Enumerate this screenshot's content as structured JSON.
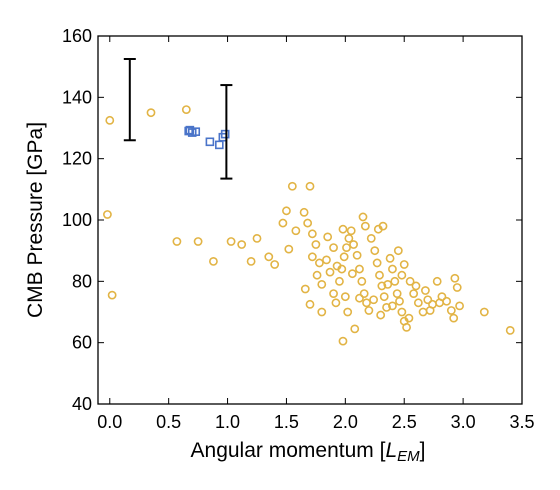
{
  "chart_data": {
    "type": "scatter",
    "title": "",
    "xlabel": "Angular momentum [",
    "xlabel_symbol": "L",
    "xlabel_subscript": "EM",
    "xlabel_close": "]",
    "ylabel": "CMB Pressure [GPa]",
    "xlim": [
      -0.1,
      3.5
    ],
    "ylim": [
      40,
      160
    ],
    "xticks": [
      0.0,
      0.5,
      1.0,
      1.5,
      2.0,
      2.5,
      3.0,
      3.5
    ],
    "xtick_labels": [
      "0.0",
      "0.5",
      "1.0",
      "1.5",
      "2.0",
      "2.5",
      "3.0",
      "3.5"
    ],
    "yticks": [
      40,
      60,
      80,
      100,
      120,
      140,
      160
    ],
    "ytick_labels": [
      "40",
      "60",
      "80",
      "100",
      "120",
      "140",
      "160"
    ],
    "grid": false,
    "series": [
      {
        "marker": "circle",
        "color": "#e2b445",
        "points": [
          [
            0.0,
            132.5
          ],
          [
            0.35,
            135.0
          ],
          [
            0.65,
            136.0
          ],
          [
            -0.02,
            101.8
          ],
          [
            0.02,
            75.5
          ],
          [
            0.57,
            93.0
          ],
          [
            0.75,
            93.0
          ],
          [
            0.88,
            86.5
          ],
          [
            1.03,
            93.0
          ],
          [
            1.12,
            92.0
          ],
          [
            1.2,
            86.5
          ],
          [
            1.25,
            94.0
          ],
          [
            1.35,
            88.0
          ],
          [
            1.4,
            85.5
          ],
          [
            1.47,
            99.0
          ],
          [
            1.5,
            103.0
          ],
          [
            1.55,
            111.0
          ],
          [
            1.58,
            96.5
          ],
          [
            1.52,
            90.5
          ],
          [
            1.7,
            111.0
          ],
          [
            1.65,
            102.5
          ],
          [
            1.68,
            99.0
          ],
          [
            1.72,
            95.5
          ],
          [
            1.75,
            92.0
          ],
          [
            1.72,
            88.0
          ],
          [
            1.78,
            86.0
          ],
          [
            1.76,
            82.0
          ],
          [
            1.66,
            77.5
          ],
          [
            1.7,
            72.5
          ],
          [
            1.8,
            70.0
          ],
          [
            1.8,
            79.0
          ],
          [
            1.84,
            87.0
          ],
          [
            1.87,
            83.0
          ],
          [
            1.9,
            76.0
          ],
          [
            1.92,
            73.0
          ],
          [
            1.95,
            80.0
          ],
          [
            1.97,
            84.0
          ],
          [
            1.99,
            88.0
          ],
          [
            2.01,
            91.0
          ],
          [
            2.03,
            94.0
          ],
          [
            1.98,
            97.0
          ],
          [
            2.05,
            96.5
          ],
          [
            2.07,
            92.0
          ],
          [
            2.1,
            88.5
          ],
          [
            2.12,
            84.0
          ],
          [
            2.14,
            80.0
          ],
          [
            2.16,
            76.0
          ],
          [
            2.18,
            73.0
          ],
          [
            2.2,
            70.5
          ],
          [
            2.15,
            101.0
          ],
          [
            2.17,
            98.0
          ],
          [
            2.22,
            94.0
          ],
          [
            2.25,
            90.0
          ],
          [
            2.27,
            86.0
          ],
          [
            2.29,
            82.0
          ],
          [
            2.31,
            78.5
          ],
          [
            2.33,
            75.0
          ],
          [
            2.35,
            71.5
          ],
          [
            2.28,
            97.0
          ],
          [
            2.32,
            98.0
          ],
          [
            2.38,
            87.5
          ],
          [
            2.4,
            84.0
          ],
          [
            2.42,
            80.0
          ],
          [
            2.44,
            76.0
          ],
          [
            2.46,
            73.5
          ],
          [
            2.48,
            70.0
          ],
          [
            2.5,
            67.0
          ],
          [
            2.52,
            65.0
          ],
          [
            2.54,
            68.0
          ],
          [
            2.45,
            90.0
          ],
          [
            2.5,
            85.5
          ],
          [
            2.55,
            80.0
          ],
          [
            2.58,
            76.0
          ],
          [
            2.62,
            73.0
          ],
          [
            2.66,
            70.0
          ],
          [
            2.7,
            74.0
          ],
          [
            2.74,
            72.5
          ],
          [
            2.78,
            80.0
          ],
          [
            2.82,
            75.0
          ],
          [
            2.86,
            73.5
          ],
          [
            2.9,
            70.5
          ],
          [
            2.93,
            81.0
          ],
          [
            2.95,
            78.0
          ],
          [
            2.97,
            72.0
          ],
          [
            2.92,
            68.0
          ],
          [
            3.18,
            70.0
          ],
          [
            3.4,
            64.0
          ],
          [
            1.98,
            60.5
          ],
          [
            2.08,
            64.5
          ],
          [
            2.02,
            70.0
          ],
          [
            1.9,
            91.0
          ],
          [
            1.85,
            94.5
          ],
          [
            2.24,
            74.0
          ],
          [
            2.36,
            79.0
          ],
          [
            2.6,
            78.5
          ],
          [
            2.68,
            77.0
          ],
          [
            2.72,
            70.5
          ],
          [
            2.8,
            73.0
          ],
          [
            2.3,
            69.0
          ],
          [
            2.4,
            72.0
          ],
          [
            2.12,
            74.5
          ],
          [
            2.06,
            82.5
          ],
          [
            1.93,
            85.0
          ],
          [
            2.0,
            75.0
          ],
          [
            2.48,
            82.0
          ]
        ]
      },
      {
        "marker": "square",
        "color": "#4a74c9",
        "points": [
          [
            0.67,
            129.0
          ],
          [
            0.7,
            128.5
          ],
          [
            0.73,
            128.8
          ],
          [
            0.68,
            129.3
          ],
          [
            0.85,
            125.5
          ],
          [
            0.93,
            124.5
          ],
          [
            0.96,
            127.0
          ],
          [
            0.98,
            128.0
          ]
        ]
      }
    ],
    "error_bars": [
      {
        "x": 0.17,
        "y_low": 126.0,
        "y_high": 152.5,
        "y_center": 139.5,
        "color": "#000000"
      },
      {
        "x": 0.99,
        "y_low": 113.5,
        "y_high": 144.0,
        "y_center": 128.5,
        "color": "#000000"
      }
    ]
  }
}
